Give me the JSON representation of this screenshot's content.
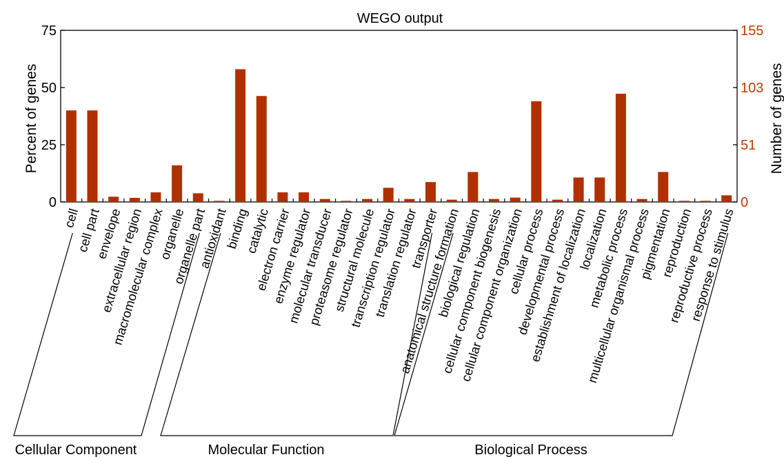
{
  "chart_data": {
    "type": "bar",
    "title": "WEGO output",
    "ylabel": "Percent of genes",
    "ylabel_right": "Number of genes",
    "ylim": [
      0,
      75
    ],
    "yticks": [
      "0",
      "25",
      "50",
      "75"
    ],
    "yticks_right": [
      "0",
      "51",
      "103",
      "155"
    ],
    "grid": false,
    "categories": [
      "cell",
      "cell part",
      "envelope",
      "extracellular region",
      "macromolecular complex",
      "organelle",
      "organelle part",
      "antioxidant",
      "binding",
      "catalytic",
      "electron carrier",
      "enzyme regulator",
      "molecular transducer",
      "proteasome regulator",
      "structural molecule",
      "transcription regulator",
      "translation regulator",
      "transporter",
      "anatomical structure formation",
      "biological regulation",
      "cellular component biogenesis",
      "cellular component organization",
      "cellular process",
      "developmental process",
      "establishment of localization",
      "localization",
      "metabolic process",
      "multicellular organismal process",
      "pigmentation",
      "reproduction",
      "reproductive process",
      "response to stimulus"
    ],
    "values": [
      40,
      40,
      2.3,
      1.8,
      4.2,
      16,
      3.8,
      0.5,
      58,
      46.3,
      4.2,
      4.2,
      1.3,
      0.5,
      1.3,
      6.2,
      1.3,
      8.7,
      1,
      13.1,
      1.3,
      1.9,
      44,
      1,
      10.7,
      10.7,
      47.3,
      1.3,
      13.1,
      0.5,
      0.5,
      2.9
    ],
    "bar_color": "#b03000",
    "right_axis_color": "#c23b00",
    "groups": [
      {
        "label": "Cellular Component",
        "start": 0,
        "end": 6
      },
      {
        "label": "Molecular Function",
        "start": 7,
        "end": 17
      },
      {
        "label": "Biological Process",
        "start": 18,
        "end": 31
      }
    ]
  }
}
